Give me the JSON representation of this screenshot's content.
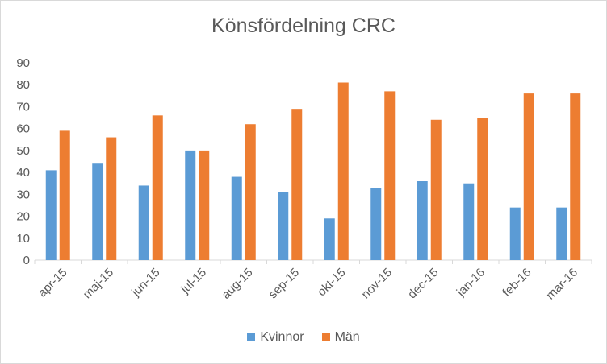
{
  "chart_data": {
    "type": "bar",
    "title": "Könsfördelning CRC",
    "categories": [
      "apr-15",
      "maj-15",
      "jun-15",
      "jul-15",
      "aug-15",
      "sep-15",
      "okt-15",
      "nov-15",
      "dec-15",
      "jan-16",
      "feb-16",
      "mar-16"
    ],
    "series": [
      {
        "name": "Kvinnor",
        "color": "#5b9bd5",
        "values": [
          41,
          44,
          34,
          50,
          38,
          31,
          19,
          33,
          36,
          35,
          24,
          24
        ]
      },
      {
        "name": "Män",
        "color": "#ed7d31",
        "values": [
          59,
          56,
          66,
          50,
          62,
          69,
          81,
          77,
          64,
          65,
          76,
          76
        ]
      }
    ],
    "ylim": [
      0,
      90
    ],
    "yticks": [
      0,
      10,
      20,
      30,
      40,
      50,
      60,
      70,
      80,
      90
    ],
    "grid": false,
    "legend": "bottom"
  }
}
